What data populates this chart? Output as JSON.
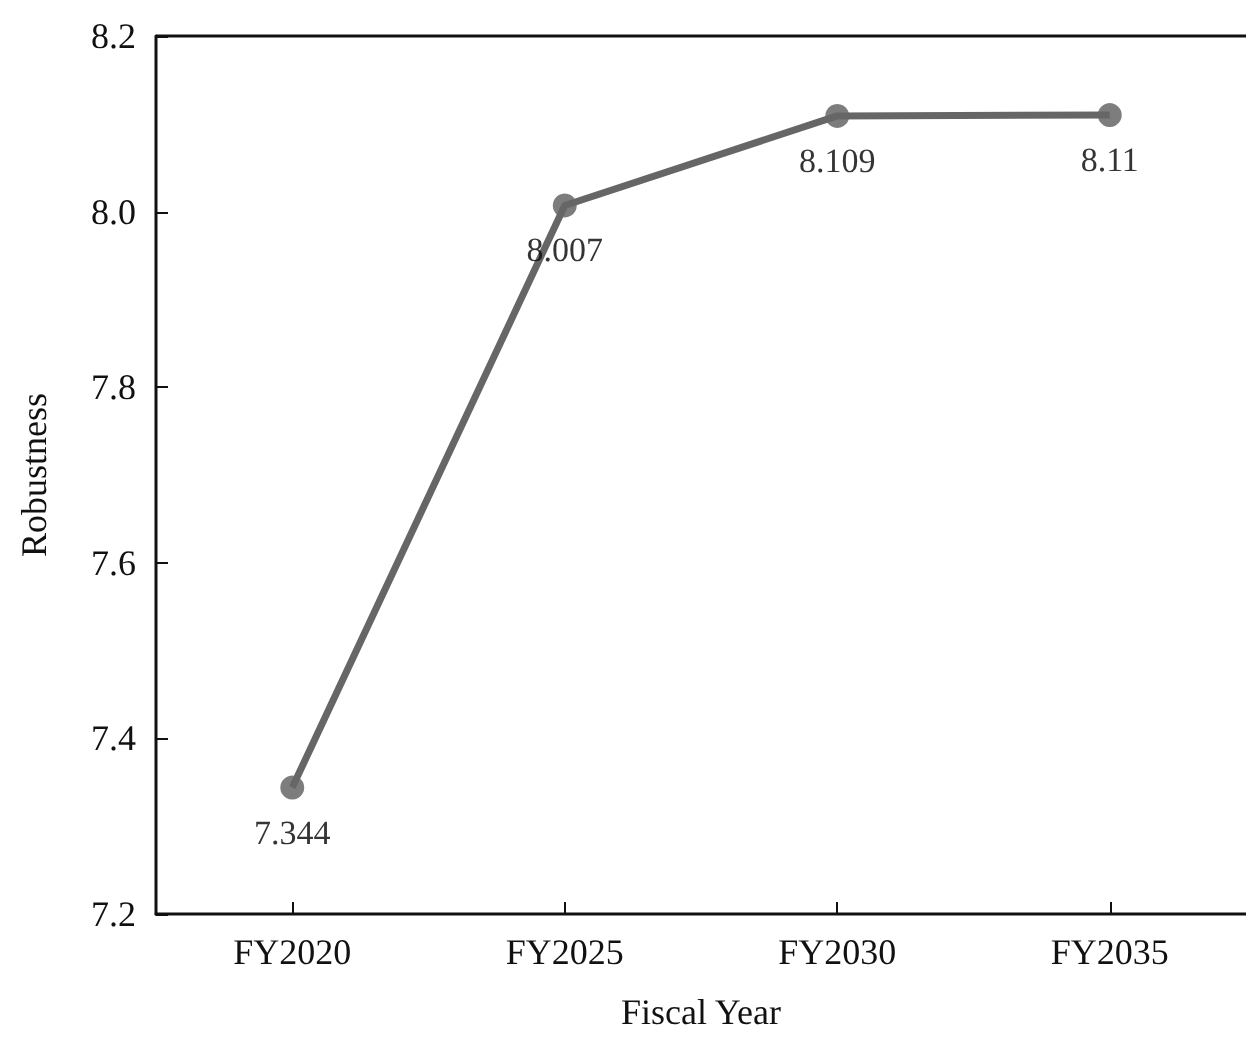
{
  "chart_data": {
    "type": "line",
    "xlabel": "Fiscal Year",
    "ylabel": "Robustness",
    "categories": [
      "FY2020",
      "FY2025",
      "FY2030",
      "FY2035"
    ],
    "series": [
      {
        "color": "#666666",
        "values": [
          7.344,
          8.007,
          8.109,
          8.11
        ]
      }
    ],
    "ylim": [
      7.2,
      8.2
    ],
    "yticks": [
      {
        "value": 7.2,
        "label": "7.2"
      },
      {
        "value": 7.4,
        "label": "7.4"
      },
      {
        "value": 7.6,
        "label": "7.6"
      },
      {
        "value": 7.8,
        "label": "7.8"
      },
      {
        "value": 8.0,
        "label": "8.0"
      },
      {
        "value": 8.2,
        "label": "8.2"
      }
    ],
    "data_labels": true,
    "marker": "circle",
    "line_style": "solid"
  }
}
